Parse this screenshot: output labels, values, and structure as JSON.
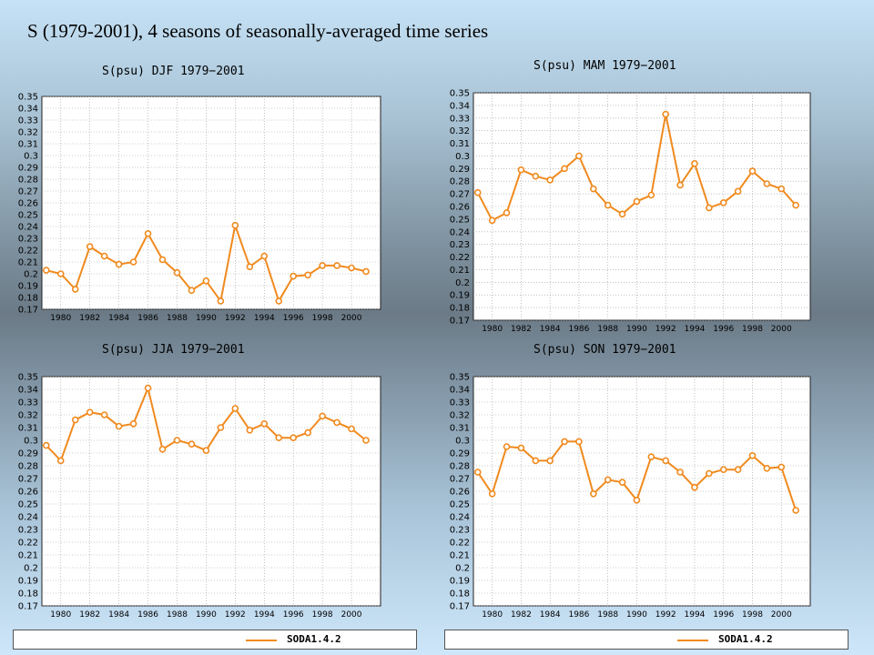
{
  "page_title": "S (1979-2001), 4 seasons of seasonally-averaged time series",
  "colors": {
    "series": "#f08a1e",
    "grid": "#9a9a9a",
    "plot_bg": "#ffffff"
  },
  "legend": {
    "label": "SODA1.4.2",
    "series_color": "#f08a1e"
  },
  "chart_data": [
    {
      "type": "line",
      "title": "S(psu) DJF 1979−2001",
      "x": [
        1979,
        1980,
        1981,
        1982,
        1983,
        1984,
        1985,
        1986,
        1987,
        1988,
        1989,
        1990,
        1991,
        1992,
        1993,
        1994,
        1995,
        1996,
        1997,
        1998,
        1999,
        2000,
        2001
      ],
      "series": [
        {
          "values": [
            0.203,
            0.2,
            0.187,
            0.223,
            0.215,
            0.208,
            0.21,
            0.234,
            0.212,
            0.201,
            0.186,
            0.194,
            0.177,
            0.241,
            0.206,
            0.215,
            0.177,
            0.198,
            0.199,
            0.207,
            0.207,
            0.205,
            0.202
          ]
        }
      ],
      "xlim": [
        1978.7,
        2002.0
      ],
      "ylim": [
        0.17,
        0.35
      ],
      "x_ticks": [
        1980,
        1982,
        1984,
        1986,
        1988,
        1990,
        1992,
        1994,
        1996,
        1998,
        2000
      ],
      "y_ticks": [
        0.17,
        0.18,
        0.19,
        0.2,
        0.21,
        0.22,
        0.23,
        0.24,
        0.25,
        0.26,
        0.27,
        0.28,
        0.29,
        0.3,
        0.31,
        0.32,
        0.33,
        0.34,
        0.35
      ],
      "grid": true
    },
    {
      "type": "line",
      "title": "S(psu) MAM 1979−2001",
      "x": [
        1979,
        1980,
        1981,
        1982,
        1983,
        1984,
        1985,
        1986,
        1987,
        1988,
        1989,
        1990,
        1991,
        1992,
        1993,
        1994,
        1995,
        1996,
        1997,
        1998,
        1999,
        2000,
        2001
      ],
      "series": [
        {
          "values": [
            0.271,
            0.249,
            0.255,
            0.289,
            0.284,
            0.281,
            0.29,
            0.3,
            0.274,
            0.261,
            0.254,
            0.264,
            0.269,
            0.333,
            0.277,
            0.294,
            0.259,
            0.263,
            0.272,
            0.288,
            0.278,
            0.274,
            0.261
          ]
        }
      ],
      "xlim": [
        1978.7,
        2002.0
      ],
      "ylim": [
        0.17,
        0.35
      ],
      "x_ticks": [
        1980,
        1982,
        1984,
        1986,
        1988,
        1990,
        1992,
        1994,
        1996,
        1998,
        2000
      ],
      "y_ticks": [
        0.17,
        0.18,
        0.19,
        0.2,
        0.21,
        0.22,
        0.23,
        0.24,
        0.25,
        0.26,
        0.27,
        0.28,
        0.29,
        0.3,
        0.31,
        0.32,
        0.33,
        0.34,
        0.35
      ],
      "grid": true
    },
    {
      "type": "line",
      "title": "S(psu) JJA 1979−2001",
      "x": [
        1979,
        1980,
        1981,
        1982,
        1983,
        1984,
        1985,
        1986,
        1987,
        1988,
        1989,
        1990,
        1991,
        1992,
        1993,
        1994,
        1995,
        1996,
        1997,
        1998,
        1999,
        2000,
        2001
      ],
      "series": [
        {
          "values": [
            0.296,
            0.284,
            0.316,
            0.322,
            0.32,
            0.311,
            0.313,
            0.341,
            0.293,
            0.3,
            0.297,
            0.292,
            0.31,
            0.325,
            0.308,
            0.313,
            0.302,
            0.302,
            0.306,
            0.319,
            0.314,
            0.309,
            0.3
          ]
        }
      ],
      "xlim": [
        1978.7,
        2002.0
      ],
      "ylim": [
        0.17,
        0.35
      ],
      "x_ticks": [
        1980,
        1982,
        1984,
        1986,
        1988,
        1990,
        1992,
        1994,
        1996,
        1998,
        2000
      ],
      "y_ticks": [
        0.17,
        0.18,
        0.19,
        0.2,
        0.21,
        0.22,
        0.23,
        0.24,
        0.25,
        0.26,
        0.27,
        0.28,
        0.29,
        0.3,
        0.31,
        0.32,
        0.33,
        0.34,
        0.35
      ],
      "grid": true
    },
    {
      "type": "line",
      "title": "S(psu) SON 1979−2001",
      "x": [
        1979,
        1980,
        1981,
        1982,
        1983,
        1984,
        1985,
        1986,
        1987,
        1988,
        1989,
        1990,
        1991,
        1992,
        1993,
        1994,
        1995,
        1996,
        1997,
        1998,
        1999,
        2000,
        2001
      ],
      "series": [
        {
          "values": [
            0.275,
            0.258,
            0.295,
            0.294,
            0.284,
            0.284,
            0.299,
            0.299,
            0.258,
            0.269,
            0.267,
            0.253,
            0.287,
            0.284,
            0.275,
            0.263,
            0.274,
            0.277,
            0.277,
            0.288,
            0.278,
            0.279,
            0.245
          ]
        }
      ],
      "xlim": [
        1978.7,
        2002.0
      ],
      "ylim": [
        0.17,
        0.35
      ],
      "x_ticks": [
        1980,
        1982,
        1984,
        1986,
        1988,
        1990,
        1992,
        1994,
        1996,
        1998,
        2000
      ],
      "y_ticks": [
        0.17,
        0.18,
        0.19,
        0.2,
        0.21,
        0.22,
        0.23,
        0.24,
        0.25,
        0.26,
        0.27,
        0.28,
        0.29,
        0.3,
        0.31,
        0.32,
        0.33,
        0.34,
        0.35
      ],
      "grid": true
    }
  ]
}
